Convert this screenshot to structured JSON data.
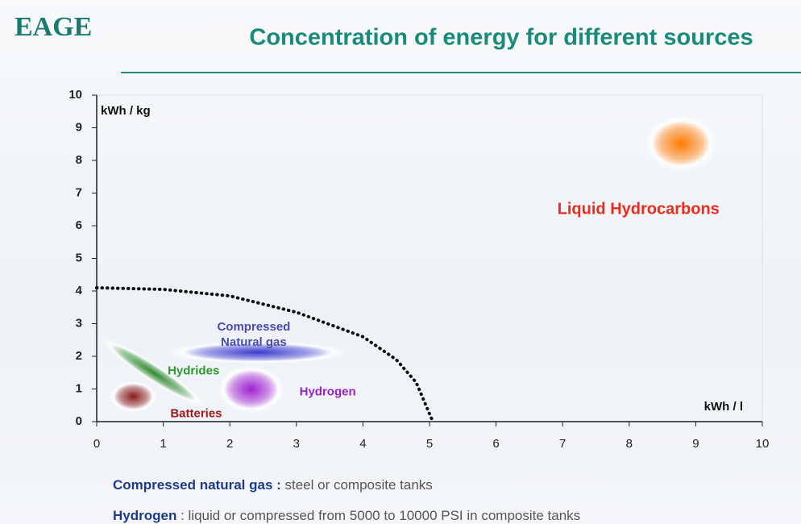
{
  "logo": "EAGE",
  "title": "Concentration of energy for different sources",
  "chart_data": {
    "type": "scatter",
    "y_label": "kWh / kg",
    "x_label": "kWh / l",
    "xlim": [
      0,
      10
    ],
    "xticks": [
      0,
      1,
      2,
      3,
      4,
      5,
      6,
      7,
      8,
      9,
      10
    ],
    "ylim": [
      0,
      10
    ],
    "yticks": [
      0,
      1,
      2,
      3,
      4,
      5,
      6,
      7,
      8,
      9,
      10
    ],
    "series": [
      {
        "name": "Liquid Hydrocarbons",
        "color": "#ff7a00",
        "label_color": "#ee2a1a",
        "x": [
          8.78
        ],
        "values": [
          8.52
        ]
      },
      {
        "name": "Compressed Natural gas",
        "color": "#3b3bd0",
        "label_color": "#4a4ab0",
        "x": [
          2.42
        ],
        "values": [
          2.12
        ]
      },
      {
        "name": "Hydrides",
        "color": "#2e8b2e",
        "label_color": "#2e9a2e",
        "x": [
          0.85
        ],
        "values": [
          1.5
        ]
      },
      {
        "name": "Hydrogen",
        "color": "#a020d0",
        "label_color": "#9a20c8",
        "x": [
          2.32
        ],
        "values": [
          0.99
        ]
      },
      {
        "name": "Batteries",
        "color": "#8b1a1a",
        "label_color": "#a01818",
        "x": [
          0.55
        ],
        "values": [
          0.77
        ]
      }
    ],
    "boundary": {
      "color": "#111111",
      "x": [
        0,
        1,
        2,
        3,
        4,
        4.5,
        4.8,
        5.05
      ],
      "values": [
        4.1,
        4.05,
        3.85,
        3.35,
        2.6,
        1.9,
        1.2,
        0
      ]
    }
  },
  "notes": [
    {
      "term": "Compressed natural gas :",
      "text": " steel or composite tanks"
    },
    {
      "term": "Hydrogen",
      "text": " : liquid or compressed from 5000 to 10000 PSI in composite tanks"
    }
  ]
}
